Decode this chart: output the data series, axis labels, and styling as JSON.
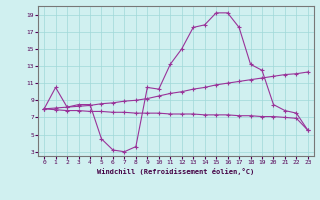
{
  "xlabel": "Windchill (Refroidissement éolien,°C)",
  "xlim": [
    -0.5,
    23.5
  ],
  "ylim": [
    2.5,
    20
  ],
  "yticks": [
    3,
    5,
    7,
    9,
    11,
    13,
    15,
    17,
    19
  ],
  "xticks": [
    0,
    1,
    2,
    3,
    4,
    5,
    6,
    7,
    8,
    9,
    10,
    11,
    12,
    13,
    14,
    15,
    16,
    17,
    18,
    19,
    20,
    21,
    22,
    23
  ],
  "bg_color": "#d0f0f0",
  "grid_color": "#a0d8d8",
  "line_color": "#993399",
  "curve1_x": [
    0,
    1,
    2,
    3,
    4,
    5,
    6,
    7,
    8,
    9,
    10,
    11,
    12,
    13,
    14,
    15,
    16,
    17,
    18,
    19,
    20,
    21,
    22,
    23
  ],
  "curve1_y": [
    8.0,
    10.5,
    8.2,
    8.5,
    8.5,
    4.5,
    3.2,
    3.0,
    3.6,
    10.5,
    10.3,
    13.2,
    15.0,
    17.5,
    17.8,
    19.2,
    19.2,
    17.5,
    13.2,
    12.5,
    8.5,
    7.8,
    7.5,
    5.5
  ],
  "curve2_x": [
    0,
    1,
    2,
    3,
    4,
    5,
    6,
    7,
    8,
    9,
    10,
    11,
    12,
    13,
    14,
    15,
    16,
    17,
    18,
    19,
    20,
    21,
    22,
    23
  ],
  "curve2_y": [
    8.0,
    8.1,
    8.2,
    8.3,
    8.4,
    8.6,
    8.7,
    8.9,
    9.0,
    9.2,
    9.5,
    9.8,
    10.0,
    10.3,
    10.5,
    10.8,
    11.0,
    11.2,
    11.4,
    11.6,
    11.8,
    12.0,
    12.1,
    12.3
  ],
  "curve3_x": [
    0,
    1,
    2,
    3,
    4,
    5,
    6,
    7,
    8,
    9,
    10,
    11,
    12,
    13,
    14,
    15,
    16,
    17,
    18,
    19,
    20,
    21,
    22,
    23
  ],
  "curve3_y": [
    8.0,
    7.9,
    7.8,
    7.8,
    7.7,
    7.7,
    7.6,
    7.6,
    7.5,
    7.5,
    7.5,
    7.4,
    7.4,
    7.4,
    7.3,
    7.3,
    7.3,
    7.2,
    7.2,
    7.1,
    7.1,
    7.0,
    6.9,
    5.5
  ],
  "figsize": [
    3.2,
    2.0
  ],
  "dpi": 100
}
